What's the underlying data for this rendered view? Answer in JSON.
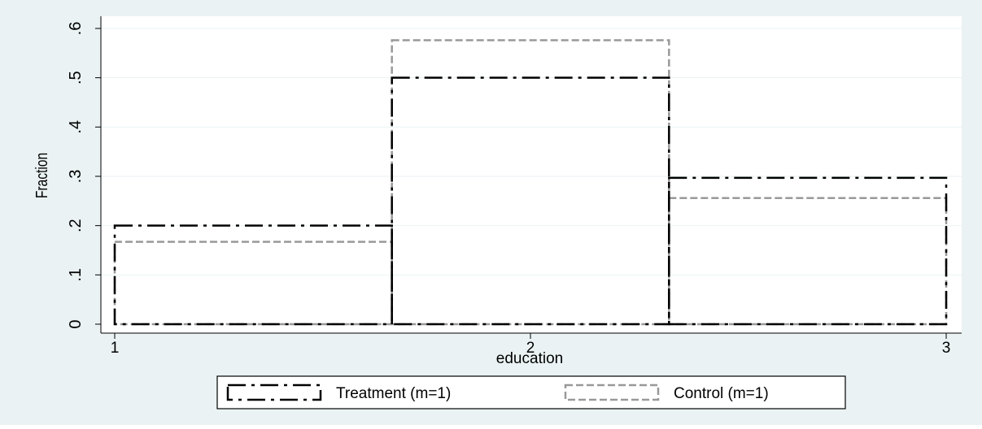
{
  "chart_data": {
    "type": "bar",
    "subtype": "histogram",
    "xlabel": "education",
    "ylabel": "Fraction",
    "xlim": [
      1,
      3
    ],
    "ylim": [
      0,
      0.6
    ],
    "x_ticks": [
      "1",
      "2",
      "3"
    ],
    "y_ticks": [
      "0",
      ".1",
      ".2",
      ".3",
      ".4",
      ".5",
      ".6"
    ],
    "bins": [
      [
        1,
        1.6667
      ],
      [
        1.6667,
        2.3333
      ],
      [
        2.3333,
        3
      ]
    ],
    "series": [
      {
        "name": "Treatment (m=1)",
        "values": [
          0.2,
          0.5,
          0.297
        ],
        "color": "#000000",
        "style": "dash-dot"
      },
      {
        "name": "Control (m=1)",
        "values": [
          0.167,
          0.576,
          0.256
        ],
        "color": "#999999",
        "style": "dashed"
      }
    ],
    "grid": true,
    "legend": "bottom",
    "colors": {
      "background": "#eaf2f3",
      "plot_region": "#ffffff",
      "grid": "#eaf2f3"
    }
  }
}
